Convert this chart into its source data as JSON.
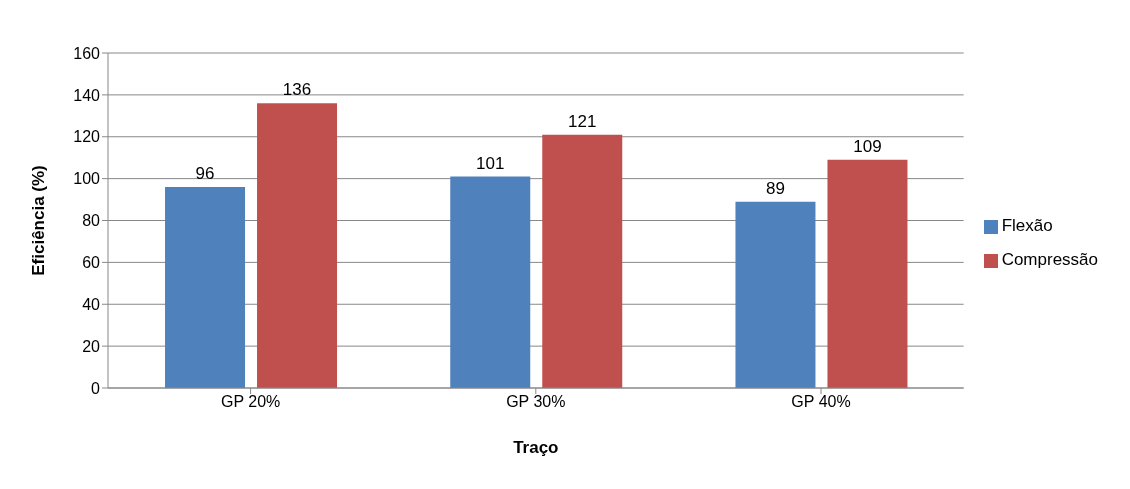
{
  "chart_data": {
    "type": "bar",
    "xlabel": "Traço",
    "ylabel": "Eficiência (%)",
    "categories": [
      "GP 20%",
      "GP 30%",
      "GP 40%"
    ],
    "series": [
      {
        "name": "Flexão",
        "color": "#4f81bd",
        "values": [
          96,
          101,
          89
        ]
      },
      {
        "name": "Compressão",
        "color": "#c0504d",
        "values": [
          136,
          121,
          109
        ]
      }
    ],
    "ylim": [
      0,
      160
    ],
    "yticks": [
      0,
      20,
      40,
      60,
      80,
      100,
      120,
      140,
      160
    ],
    "grid": "y",
    "legend": "right",
    "data_labels": true
  }
}
